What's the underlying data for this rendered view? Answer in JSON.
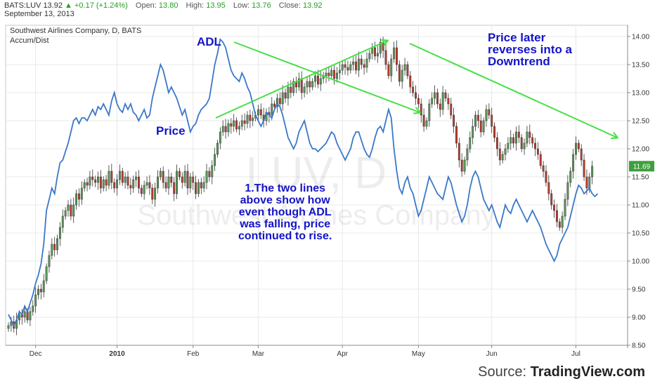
{
  "header": {
    "symbol": "BATS:LUV",
    "last": "13.92",
    "change_arrow": "▲",
    "change": "+0.17 (+1.24%)",
    "open_label": "Open:",
    "open": "13.80",
    "high_label": "High:",
    "high": "13.95",
    "low_label": "Low:",
    "low": "13.76",
    "close_label": "Close:",
    "close": "13.92",
    "date": "September 13, 2013"
  },
  "panel": {
    "title": "Southwest Airlines Company, D, BATS",
    "indicator": "Accum/Dist",
    "watermark_symbol": "LUV, D",
    "watermark_name": "Southwest Airlines Company"
  },
  "price_tag": "11.69",
  "annotations": {
    "adl": "ADL",
    "price": "Price",
    "reversal_1": "Price later",
    "reversal_2": "reverses into a",
    "reversal_3": "Downtrend",
    "note_1": "1.The two lines",
    "note_2": "above show how",
    "note_3": "even though ADL",
    "note_4": "was falling, price",
    "note_5": "continued to rise."
  },
  "source": {
    "prefix": "Source: ",
    "brand": "TradingView.com"
  },
  "colors": {
    "up": "#5a9a5a",
    "down": "#c0392b",
    "adl_line": "#3a78c8",
    "arrow": "#44e044",
    "annotation": "#1414c8",
    "tag": "#3d9f3d"
  },
  "chart_data": {
    "type": "candlestick",
    "title": "Southwest Airlines Company, D, BATS",
    "yticks": [
      8.5,
      9.0,
      9.5,
      10.0,
      10.5,
      11.0,
      11.5,
      12.0,
      12.5,
      13.0,
      13.5,
      14.0
    ],
    "ytick_labels": [
      "8.50",
      "9.00",
      "9.50",
      "10.00",
      "10.50",
      "11.00",
      "11.50",
      "12.00",
      "12.50",
      "13.00",
      "13.50",
      "14.00"
    ],
    "ylim": [
      8.5,
      14.2
    ],
    "xticks": [
      {
        "label": "Dec",
        "index": 10
      },
      {
        "label": "2010",
        "index": 40
      },
      {
        "label": "Feb",
        "index": 68
      },
      {
        "label": "Mar",
        "index": 92
      },
      {
        "label": "Apr",
        "index": 123
      },
      {
        "label": "May",
        "index": 151
      },
      {
        "label": "Jun",
        "index": 178
      },
      {
        "label": "Jul",
        "index": 209
      }
    ],
    "xlim": [
      0,
      227
    ],
    "price_close": [
      8.85,
      8.92,
      8.8,
      8.95,
      9.05,
      9.0,
      9.1,
      8.95,
      9.1,
      9.2,
      9.4,
      9.5,
      9.45,
      9.65,
      9.9,
      10.1,
      10.3,
      10.2,
      10.4,
      10.6,
      10.8,
      10.9,
      11.0,
      10.8,
      11.0,
      11.2,
      11.1,
      11.3,
      11.4,
      11.35,
      11.5,
      11.45,
      11.4,
      11.5,
      11.3,
      11.45,
      11.35,
      11.6,
      11.4,
      11.3,
      11.45,
      11.6,
      11.4,
      11.5,
      11.35,
      11.3,
      11.45,
      11.5,
      11.3,
      11.2,
      11.35,
      11.4,
      11.3,
      11.1,
      11.3,
      11.5,
      11.6,
      11.4,
      11.3,
      11.5,
      11.4,
      11.2,
      11.6,
      11.5,
      11.4,
      11.6,
      11.3,
      11.5,
      11.4,
      11.2,
      11.4,
      11.3,
      11.4,
      11.6,
      11.5,
      11.7,
      11.9,
      12.1,
      12.3,
      12.4,
      12.3,
      12.45,
      12.4,
      12.5,
      12.35,
      12.4,
      12.5,
      12.45,
      12.6,
      12.5,
      12.55,
      12.6,
      12.7,
      12.6,
      12.5,
      12.65,
      12.6,
      12.8,
      12.75,
      12.9,
      12.8,
      13.0,
      12.9,
      13.1,
      13.0,
      13.2,
      13.1,
      13.25,
      13.0,
      13.1,
      13.2,
      13.1,
      13.2,
      13.3,
      13.15,
      13.25,
      13.3,
      13.35,
      13.3,
      13.4,
      13.25,
      13.35,
      13.4,
      13.5,
      13.45,
      13.4,
      13.5,
      13.55,
      13.4,
      13.6,
      13.5,
      13.45,
      13.6,
      13.7,
      13.8,
      13.65,
      13.7,
      13.9,
      13.75,
      13.5,
      13.3,
      13.6,
      13.8,
      13.5,
      13.2,
      13.4,
      13.5,
      13.3,
      13.1,
      13.0,
      12.9,
      12.8,
      12.6,
      12.4,
      12.5,
      12.8,
      12.9,
      13.0,
      12.8,
      12.7,
      13.0,
      12.9,
      12.8,
      12.6,
      12.4,
      12.1,
      11.8,
      11.6,
      11.8,
      12.0,
      12.2,
      12.4,
      12.6,
      12.5,
      12.3,
      12.5,
      12.7,
      12.6,
      12.4,
      12.2,
      12.0,
      11.8,
      11.9,
      12.0,
      12.1,
      12.2,
      12.1,
      12.3,
      12.2,
      12.0,
      12.1,
      12.3,
      12.2,
      12.1,
      12.0,
      11.9,
      11.7,
      11.6,
      11.4,
      11.2,
      11.0,
      10.9,
      10.7,
      10.6,
      10.8,
      11.1,
      11.4,
      11.6,
      11.9,
      12.1,
      12.0,
      11.8,
      11.5,
      11.3,
      11.5,
      11.69
    ],
    "adl": [
      9.05,
      8.95,
      8.85,
      8.95,
      9.1,
      9.05,
      9.2,
      9.1,
      9.25,
      9.4,
      9.6,
      9.75,
      9.95,
      10.3,
      10.9,
      11.1,
      11.3,
      11.2,
      11.5,
      11.75,
      11.8,
      11.95,
      12.1,
      12.3,
      12.5,
      12.55,
      12.45,
      12.55,
      12.55,
      12.5,
      12.6,
      12.7,
      12.6,
      12.75,
      12.7,
      12.8,
      12.7,
      12.6,
      12.85,
      13.0,
      12.8,
      12.7,
      12.65,
      12.8,
      12.7,
      12.8,
      12.65,
      12.6,
      12.5,
      12.6,
      12.7,
      12.55,
      12.6,
      12.9,
      13.1,
      13.3,
      13.5,
      13.4,
      13.2,
      13.0,
      13.1,
      13.0,
      12.9,
      12.75,
      12.6,
      12.7,
      12.5,
      12.3,
      12.4,
      12.45,
      12.6,
      12.7,
      12.75,
      12.8,
      12.9,
      13.2,
      13.5,
      13.7,
      13.95,
      13.9,
      13.8,
      13.6,
      13.4,
      13.3,
      13.25,
      13.2,
      13.35,
      13.25,
      13.1,
      13.0,
      12.8,
      12.6,
      12.5,
      12.4,
      12.5,
      12.65,
      12.6,
      12.55,
      12.7,
      12.8,
      12.75,
      12.6,
      12.4,
      12.2,
      12.1,
      12.0,
      12.1,
      12.3,
      12.4,
      12.5,
      12.3,
      12.1,
      12.0,
      12.0,
      11.95,
      12.0,
      12.05,
      12.1,
      12.2,
      12.3,
      12.25,
      12.1,
      12.0,
      11.9,
      11.8,
      11.9,
      12.0,
      12.2,
      12.3,
      12.3,
      12.15,
      12.0,
      11.9,
      11.85,
      12.0,
      12.2,
      12.35,
      12.4,
      12.3,
      12.5,
      12.7,
      12.55,
      12.0,
      11.6,
      11.3,
      11.2,
      11.4,
      11.5,
      11.3,
      11.2,
      11.0,
      10.8,
      10.9,
      11.1,
      11.3,
      11.5,
      11.4,
      11.3,
      11.2,
      11.15,
      11.1,
      11.3,
      11.5,
      11.4,
      11.2,
      11.0,
      10.85,
      10.7,
      10.8,
      11.0,
      11.3,
      11.5,
      11.6,
      11.5,
      11.3,
      11.1,
      11.0,
      10.9,
      11.0,
      10.85,
      10.7,
      10.6,
      10.8,
      11.0,
      10.9,
      10.85,
      11.0,
      11.1,
      11.0,
      10.9,
      10.8,
      10.7,
      10.8,
      10.9,
      10.8,
      10.7,
      10.6,
      10.45,
      10.3,
      10.2,
      10.1,
      10.0,
      10.1,
      10.3,
      10.4,
      10.5,
      10.6,
      10.8,
      11.0,
      11.2,
      11.35,
      11.3,
      11.2,
      11.25,
      11.3,
      11.2,
      11.15,
      11.2
    ]
  }
}
